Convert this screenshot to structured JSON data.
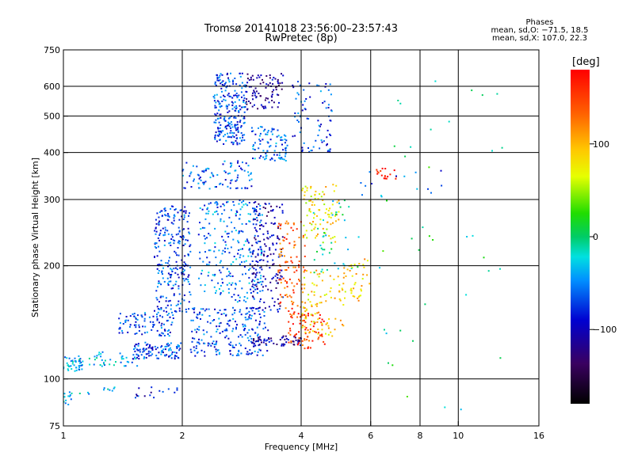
{
  "header": {
    "title_line1": "Tromsø 20141018 23:56:00–23:57:43",
    "title_line2": "RwPretec (8p)",
    "phases_heading": "Phases",
    "phases_o": "mean, sd,O: −71.5, 18.5",
    "phases_x": "mean, sd,X: 107.0, 22.3"
  },
  "colorbar": {
    "label": "[deg]",
    "ticks": [
      {
        "value": 100,
        "label": "100"
      },
      {
        "value": 0,
        "label": "0"
      },
      {
        "value": -100,
        "label": "−100"
      }
    ],
    "range": [
      -180,
      180
    ]
  },
  "chart_data": {
    "type": "scatter",
    "xlabel": "Frequency [MHz]",
    "ylabel": "Stationary phase Virtual Height [km]",
    "x_scale": "log",
    "y_scale": "log",
    "xlim": [
      1,
      16
    ],
    "ylim": [
      75,
      750
    ],
    "x_ticks": [
      {
        "value": 1,
        "label": "1"
      },
      {
        "value": 2,
        "label": "2"
      },
      {
        "value": 4,
        "label": "4"
      },
      {
        "value": 6,
        "label": "6"
      },
      {
        "value": 8,
        "label": "8"
      },
      {
        "value": 10,
        "label": "10"
      },
      {
        "value": 16,
        "label": "16"
      }
    ],
    "y_ticks": [
      {
        "value": 75,
        "label": "75"
      },
      {
        "value": 100,
        "label": "100"
      },
      {
        "value": 200,
        "label": "200"
      },
      {
        "value": 300,
        "label": "300"
      },
      {
        "value": 400,
        "label": "400"
      },
      {
        "value": 500,
        "label": "500"
      },
      {
        "value": 600,
        "label": "600"
      },
      {
        "value": 750,
        "label": "750"
      }
    ],
    "grid_x": [
      2,
      4,
      6,
      8,
      10
    ],
    "grid_y": [
      100,
      200,
      300,
      400,
      500,
      600
    ],
    "color_variable": "phase [deg]",
    "clusters": [
      {
        "f": [
          1.0,
          1.12
        ],
        "h": [
          104,
          115
        ],
        "phase": -40,
        "n": 45
      },
      {
        "f": [
          1.12,
          1.55
        ],
        "h": [
          108,
          118
        ],
        "phase": -40,
        "n": 40
      },
      {
        "f": [
          1.0,
          1.06
        ],
        "h": [
          85,
          93
        ],
        "phase": -30,
        "n": 12
      },
      {
        "f": [
          1.1,
          1.35
        ],
        "h": [
          91,
          96
        ],
        "phase": -40,
        "n": 10
      },
      {
        "f": [
          1.5,
          1.95
        ],
        "h": [
          89,
          96
        ],
        "phase": -90,
        "n": 16
      },
      {
        "f": [
          1.38,
          1.9
        ],
        "h": [
          130,
          150
        ],
        "phase": -70,
        "n": 90
      },
      {
        "f": [
          1.5,
          2.0
        ],
        "h": [
          113,
          125
        ],
        "phase": -70,
        "n": 100
      },
      {
        "f": [
          1.7,
          2.1
        ],
        "h": [
          150,
          290
        ],
        "phase": -70,
        "n": 260
      },
      {
        "f": [
          2.1,
          3.3
        ],
        "h": [
          115,
          155
        ],
        "phase": -70,
        "n": 220
      },
      {
        "f": [
          2.2,
          3.2
        ],
        "h": [
          160,
          300
        ],
        "phase": -55,
        "n": 260
      },
      {
        "f": [
          2.4,
          2.9
        ],
        "h": [
          420,
          650
        ],
        "phase": -70,
        "n": 240
      },
      {
        "f": [
          2.0,
          3.0
        ],
        "h": [
          320,
          380
        ],
        "phase": -65,
        "n": 90
      },
      {
        "f": [
          2.9,
          3.6
        ],
        "h": [
          520,
          650
        ],
        "phase": -110,
        "n": 90
      },
      {
        "f": [
          3.0,
          3.7
        ],
        "h": [
          380,
          470
        ],
        "phase": -60,
        "n": 90
      },
      {
        "f": [
          3.0,
          3.6
        ],
        "h": [
          150,
          300
        ],
        "phase": -105,
        "n": 170
      },
      {
        "f": [
          3.0,
          4.0
        ],
        "h": [
          122,
          130
        ],
        "phase": -110,
        "n": 60
      },
      {
        "f": [
          3.5,
          4.1
        ],
        "h": [
          150,
          265
        ],
        "phase": 140,
        "n": 110
      },
      {
        "f": [
          3.7,
          4.6
        ],
        "h": [
          120,
          150
        ],
        "phase": 150,
        "n": 80
      },
      {
        "f": [
          3.8,
          4.8
        ],
        "h": [
          400,
          620
        ],
        "phase": -70,
        "n": 80
      },
      {
        "f": [
          4.0,
          5.0
        ],
        "h": [
          230,
          330
        ],
        "phase": 80,
        "n": 90
      },
      {
        "f": [
          4.0,
          5.2
        ],
        "h": [
          130,
          200
        ],
        "phase": 90,
        "n": 90
      },
      {
        "f": [
          4.3,
          5.6
        ],
        "h": [
          190,
          300
        ],
        "phase": -10,
        "n": 40
      },
      {
        "f": [
          5.0,
          6.0
        ],
        "h": [
          160,
          210
        ],
        "phase": 90,
        "n": 40
      },
      {
        "f": [
          6.2,
          7.0
        ],
        "h": [
          340,
          365
        ],
        "phase": 165,
        "n": 18
      },
      {
        "f": [
          5.6,
          9.2
        ],
        "h": [
          300,
          360
        ],
        "phase": -60,
        "n": 14
      },
      {
        "f": [
          6.0,
          13.0
        ],
        "h": [
          80,
          650
        ],
        "phase": 0,
        "n": 40
      }
    ]
  }
}
